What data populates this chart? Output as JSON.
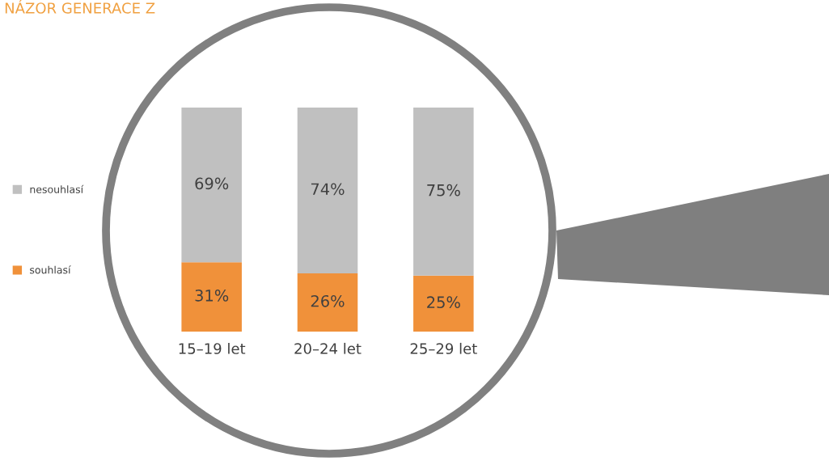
{
  "chart_data": {
    "type": "bar",
    "title": "NÁZOR GENERACE Z",
    "stacked": true,
    "legend": "left",
    "tick_labels": "x",
    "categories": [
      "15–19 let",
      "20–24 let",
      "25–29 let"
    ],
    "series": [
      {
        "name": "souhlasí",
        "color": "#f0913a",
        "values": [
          31,
          26,
          25
        ],
        "value_labels": [
          "31%",
          "26%",
          "25%"
        ]
      },
      {
        "name": "nesouhlasí",
        "color": "#c0c0c0",
        "values": [
          69,
          74,
          75
        ],
        "value_labels": [
          "69%",
          "74%",
          "75%"
        ]
      }
    ]
  }
}
